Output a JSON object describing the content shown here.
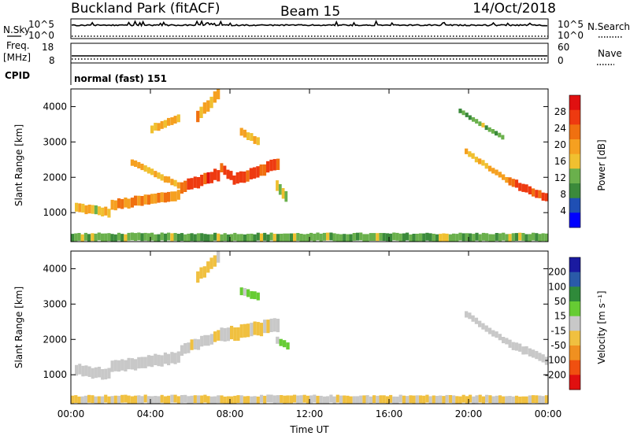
{
  "header": {
    "station": "Buckland Park (fitACF)",
    "beam": "Beam 15",
    "date": "14/Oct/2018"
  },
  "status_panels": {
    "nsky_label": "N.Sky",
    "nsearch_label": "N.Search",
    "noise_ticks_left": [
      "10^5",
      "10^0"
    ],
    "noise_ticks_right": [
      "10^5",
      "10^0"
    ],
    "freq_label_1": "Freq.",
    "freq_label_2": "[MHz]",
    "freq_ticks": [
      "18",
      "8"
    ],
    "nave_label": "Nave",
    "nave_ticks": [
      "60",
      "0"
    ],
    "cpid_label": "CPID",
    "cpid_text": "normal (fast) 151"
  },
  "colors": {
    "power_scale": [
      "#0000ff",
      "#1f4fb4",
      "#3b8a3b",
      "#6ab04c",
      "#f0c030",
      "#f5a020",
      "#f07010",
      "#ee3a10",
      "#e01010"
    ],
    "velocity_scale": [
      "#1a1aa0",
      "#2a5aa8",
      "#2f8a3a",
      "#66cc33",
      "#c8c8c8",
      "#f0c040",
      "#f09020",
      "#f05010",
      "#e01010"
    ]
  },
  "chart_data": [
    {
      "type": "heatmap",
      "title": "",
      "xlabel": "",
      "ylabel": "Slant Range [km]",
      "xlim": [
        0,
        24
      ],
      "ylim": [
        180,
        4500
      ],
      "x_ticks": [
        "00:00",
        "04:00",
        "08:00",
        "12:00",
        "16:00",
        "20:00",
        "00:00"
      ],
      "y_ticks": [
        "1000",
        "2000",
        "3000",
        "4000"
      ],
      "colorbar": {
        "label": "Power [dB]",
        "range": [
          0,
          32
        ],
        "ticks": [
          "4",
          "8",
          "12",
          "16",
          "20",
          "24",
          "28"
        ]
      },
      "bands": [
        {
          "t0": 0.2,
          "t1": 2.0,
          "r0": 1150,
          "r1": 1000,
          "w": 250,
          "v": 16
        },
        {
          "t0": 2.0,
          "t1": 5.5,
          "r0": 1200,
          "r1": 1500,
          "w": 280,
          "v": 22
        },
        {
          "t0": 5.5,
          "t1": 7.5,
          "r0": 1700,
          "r1": 2100,
          "w": 320,
          "v": 26
        },
        {
          "t0": 7.5,
          "t1": 8.3,
          "r0": 2300,
          "r1": 1900,
          "w": 260,
          "v": 25
        },
        {
          "t0": 8.3,
          "t1": 10.5,
          "r0": 1950,
          "r1": 2400,
          "w": 320,
          "v": 25
        },
        {
          "t0": 3.0,
          "t1": 5.5,
          "r0": 2450,
          "r1": 1750,
          "w": 180,
          "v": 18
        },
        {
          "t0": 6.3,
          "t1": 7.5,
          "r0": 3700,
          "r1": 4400,
          "w": 320,
          "v": 20
        },
        {
          "t0": 4.0,
          "t1": 5.5,
          "r0": 3350,
          "r1": 3700,
          "w": 220,
          "v": 17
        },
        {
          "t0": 8.5,
          "t1": 9.5,
          "r0": 3300,
          "r1": 3000,
          "w": 220,
          "v": 18
        },
        {
          "t0": 10.3,
          "t1": 10.9,
          "r0": 1800,
          "r1": 1400,
          "w": 300,
          "v": 15
        },
        {
          "t0": 19.8,
          "t1": 22.0,
          "r0": 2750,
          "r1": 1900,
          "w": 160,
          "v": 18
        },
        {
          "t0": 22.0,
          "t1": 24.0,
          "r0": 1900,
          "r1": 1400,
          "w": 230,
          "v": 24
        },
        {
          "t0": 19.5,
          "t1": 21.8,
          "r0": 3900,
          "r1": 3100,
          "w": 130,
          "v": 12
        },
        {
          "t0": 0.0,
          "t1": 24.0,
          "r0": 300,
          "r1": 300,
          "w": 220,
          "v": 12
        }
      ]
    },
    {
      "type": "heatmap",
      "title": "",
      "xlabel": "Time UT",
      "ylabel": "Slant Range [km]",
      "xlim": [
        0,
        24
      ],
      "ylim": [
        180,
        4500
      ],
      "x_ticks": [
        "00:00",
        "04:00",
        "08:00",
        "12:00",
        "16:00",
        "20:00",
        "00:00"
      ],
      "y_ticks": [
        "1000",
        "2000",
        "3000",
        "4000"
      ],
      "colorbar": {
        "label": "Velocity [m s⁻¹]",
        "range": [
          -250,
          250
        ],
        "ticks": [
          "200",
          "100",
          "50",
          "15",
          "-15",
          "-50",
          "-100",
          "-200"
        ]
      },
      "bands": [
        {
          "t0": 0.2,
          "t1": 2.0,
          "r0": 1150,
          "r1": 1000,
          "w": 300,
          "v": 0
        },
        {
          "t0": 2.0,
          "t1": 5.5,
          "r0": 1200,
          "r1": 1500,
          "w": 320,
          "v": 0
        },
        {
          "t0": 5.5,
          "t1": 7.5,
          "r0": 1700,
          "r1": 2100,
          "w": 300,
          "v": -20
        },
        {
          "t0": 7.5,
          "t1": 10.5,
          "r0": 2100,
          "r1": 2400,
          "w": 380,
          "v": -30
        },
        {
          "t0": 6.3,
          "t1": 7.5,
          "r0": 3700,
          "r1": 4400,
          "w": 320,
          "v": -40
        },
        {
          "t0": 8.5,
          "t1": 9.5,
          "r0": 3400,
          "r1": 3200,
          "w": 220,
          "v": 40
        },
        {
          "t0": 10.3,
          "t1": 11.0,
          "r0": 2000,
          "r1": 1800,
          "w": 200,
          "v": 40
        },
        {
          "t0": 19.8,
          "t1": 22.0,
          "r0": 2750,
          "r1": 1900,
          "w": 180,
          "v": 0
        },
        {
          "t0": 22.0,
          "t1": 24.0,
          "r0": 1900,
          "r1": 1400,
          "w": 230,
          "v": 0
        },
        {
          "t0": 0.0,
          "t1": 24.0,
          "r0": 300,
          "r1": 300,
          "w": 220,
          "v": -30
        }
      ]
    }
  ]
}
